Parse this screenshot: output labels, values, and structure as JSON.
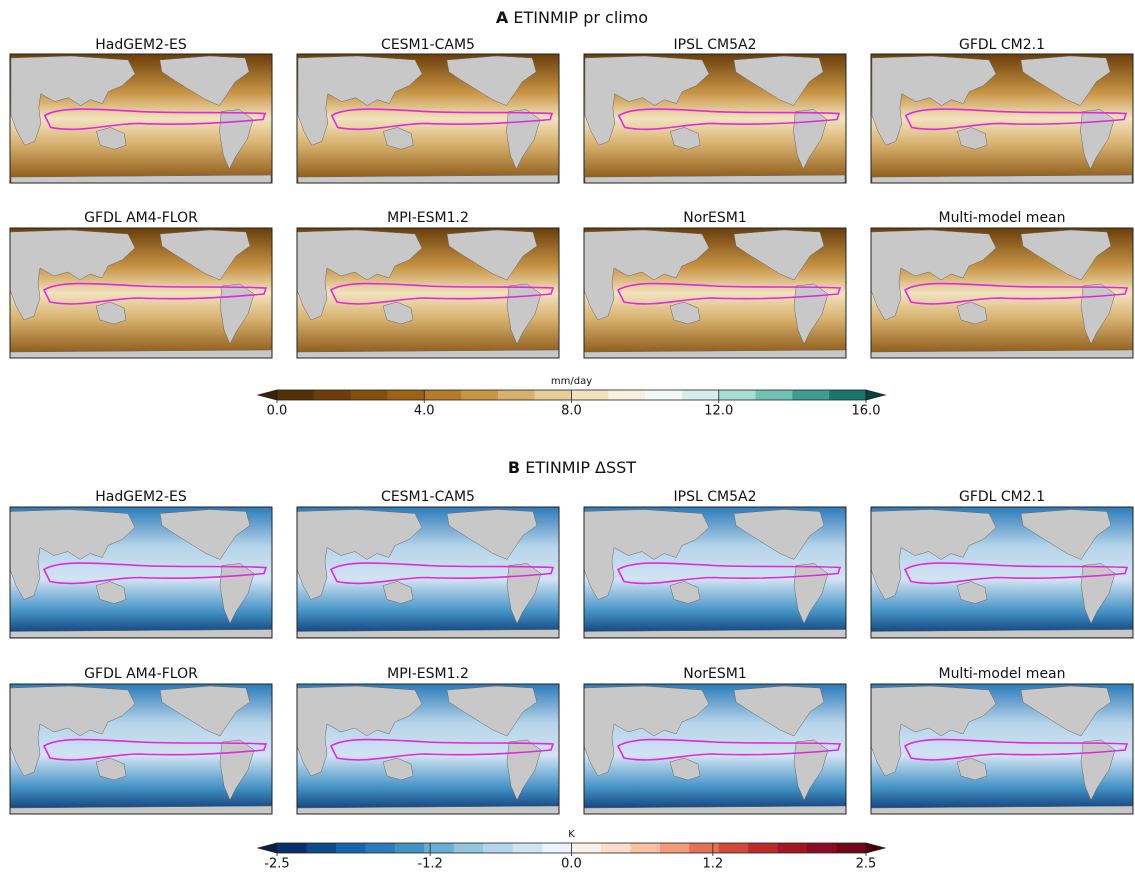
{
  "figure": {
    "panels": [
      {
        "label": "A",
        "title": "ETINMIP pr climo",
        "map_titles": [
          "HadGEM2-ES",
          "CESM1-CAM5",
          "IPSL CM5A2",
          "GFDL CM2.1",
          "GFDL AM4-FLOR",
          "MPI-ESM1.2",
          "NorESM1",
          "Multi-model mean"
        ],
        "colorbar": {
          "label": "mm/day",
          "lim": [
            0,
            16
          ],
          "ticks": [
            {
              "value": 0,
              "label": "0.0"
            },
            {
              "value": 4,
              "label": "4.0"
            },
            {
              "value": 8,
              "label": "8.0"
            },
            {
              "value": 12,
              "label": "12.0"
            },
            {
              "value": 16,
              "label": "16.0"
            }
          ],
          "colors": [
            "#543005",
            "#6b3e0a",
            "#84500f",
            "#9c6317",
            "#b57a2b",
            "#c89545",
            "#d8b16e",
            "#e8cd97",
            "#f2e3bf",
            "#f8f0dc",
            "#f3f9f7",
            "#d5eeea",
            "#a8ddd4",
            "#72c1b5",
            "#3f9c90",
            "#1a756a"
          ],
          "under": "#3d2203",
          "over": "#01463c"
        }
      },
      {
        "label": "B",
        "title": "ETINMIP ΔSST",
        "map_titles": [
          "HadGEM2-ES",
          "CESM1-CAM5",
          "IPSL CM5A2",
          "GFDL CM2.1",
          "GFDL AM4-FLOR",
          "MPI-ESM1.2",
          "NorESM1",
          "Multi-model mean"
        ],
        "colorbar": {
          "label": "K",
          "lim": [
            -2.5,
            2.5
          ],
          "ticks": [
            -2.5,
            -1.2,
            {
              "value": 0,
              "label": "0.0"
            },
            1.2,
            2.5
          ],
          "colors": [
            "#08306b",
            "#0d4a8c",
            "#1764ab",
            "#2b7bba",
            "#4292c6",
            "#6aaed6",
            "#94c4df",
            "#b6d4e9",
            "#d2e3f3",
            "#eaf2fa",
            "#fdf0e8",
            "#fbdccb",
            "#f7bfa4",
            "#f29a7c",
            "#e57257",
            "#d4483a",
            "#bb2a2c",
            "#a11624",
            "#8a0c1f",
            "#70081a"
          ],
          "under": "#041e45",
          "over": "#4d0011"
        }
      }
    ]
  }
}
